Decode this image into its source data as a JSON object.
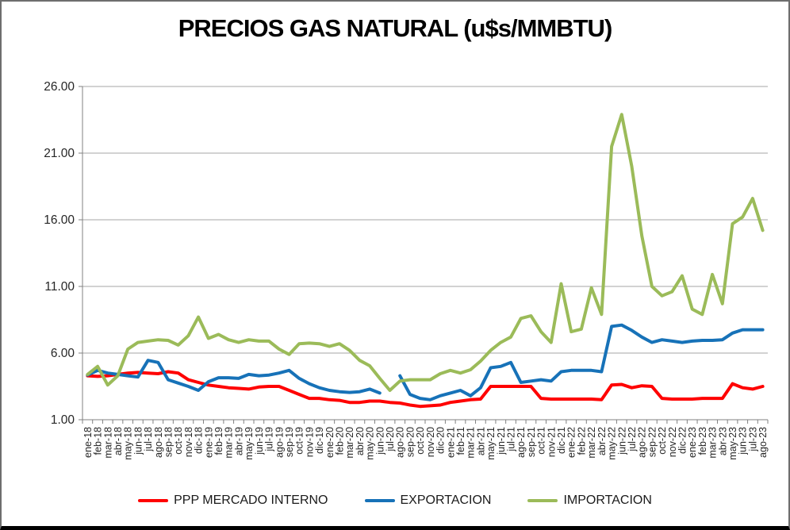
{
  "chart_data": {
    "type": "line",
    "title": "PRECIOS GAS NATURAL (u$s/MMBTU)",
    "xlabel": "",
    "ylabel": "",
    "ylim": [
      1.0,
      26.0
    ],
    "y_ticks": [
      1,
      6,
      11,
      16,
      21,
      26
    ],
    "y_tick_labels": [
      "1.00",
      "6.00",
      "11.00",
      "16.00",
      "21.00",
      "26.00"
    ],
    "grid": true,
    "legend_position": "bottom",
    "categories": [
      "ene-18",
      "feb-18",
      "mar-18",
      "abr-18",
      "may-18",
      "jun-18",
      "jul-18",
      "ago-18",
      "sep-18",
      "oct-18",
      "nov-18",
      "dic-18",
      "ene-19",
      "feb-19",
      "mar-19",
      "abr-19",
      "may-19",
      "jun-19",
      "jul-19",
      "ago-19",
      "sep-19",
      "oct-19",
      "nov-19",
      "dic-19",
      "ene-20",
      "feb-20",
      "mar-20",
      "abr-20",
      "may-20",
      "jun-20",
      "jul-20",
      "ago-20",
      "sep-20",
      "oct-20",
      "nov-20",
      "dic-20",
      "ene-21",
      "feb-21",
      "mar-21",
      "abr-21",
      "may-21",
      "jun-21",
      "jul-21",
      "ago-21",
      "sep-21",
      "oct-21",
      "nov-21",
      "dic-21",
      "ene-22",
      "feb-22",
      "mar-22",
      "abr-22",
      "may-22",
      "jun-22",
      "jul-22",
      "ago-22",
      "sep-22",
      "oct-22",
      "nov-22",
      "dic-22",
      "ene-23",
      "feb-23",
      "mar-23",
      "abr-23",
      "may-23",
      "jun-23",
      "jul-23",
      "ago-23"
    ],
    "series": [
      {
        "name": "PPP MERCADO INTERNO",
        "color": "#FF0000",
        "values": [
          4.3,
          4.25,
          4.3,
          4.4,
          4.5,
          4.55,
          4.5,
          4.45,
          4.6,
          4.5,
          4.0,
          3.8,
          3.6,
          3.5,
          3.4,
          3.35,
          3.3,
          3.45,
          3.5,
          3.5,
          3.2,
          2.9,
          2.6,
          2.6,
          2.5,
          2.45,
          2.3,
          2.3,
          2.4,
          2.4,
          2.3,
          2.25,
          2.1,
          2.0,
          2.05,
          2.1,
          2.3,
          2.4,
          2.5,
          2.55,
          3.5,
          3.5,
          3.5,
          3.5,
          3.5,
          2.6,
          2.55,
          2.55,
          2.55,
          2.55,
          2.55,
          2.5,
          3.6,
          3.65,
          3.4,
          3.55,
          3.5,
          2.6,
          2.55,
          2.55,
          2.55,
          2.6,
          2.6,
          2.6,
          3.7,
          3.4,
          3.3,
          3.5
        ]
      },
      {
        "name": "EXPORTACION",
        "color": "#1772B8",
        "values": [
          4.35,
          4.7,
          4.5,
          4.4,
          4.3,
          4.2,
          5.45,
          5.3,
          4.0,
          3.75,
          3.5,
          3.2,
          3.85,
          4.15,
          4.15,
          4.1,
          4.4,
          4.3,
          4.35,
          4.5,
          4.7,
          4.1,
          3.7,
          3.4,
          3.2,
          3.1,
          3.05,
          3.1,
          3.3,
          3.0,
          null,
          4.3,
          2.9,
          2.6,
          2.5,
          2.8,
          3.0,
          3.2,
          2.8,
          3.4,
          4.9,
          5.0,
          5.3,
          3.8,
          3.9,
          4.0,
          3.9,
          4.6,
          4.7,
          4.7,
          4.7,
          4.6,
          8.0,
          8.1,
          7.7,
          7.2,
          6.8,
          7.0,
          6.9,
          6.8,
          6.9,
          6.95,
          6.95,
          7.0,
          7.5,
          7.75,
          7.75,
          7.75
        ]
      },
      {
        "name": "IMPORTACION",
        "color": "#9BBB59",
        "values": [
          4.4,
          5.0,
          3.6,
          4.3,
          6.3,
          6.8,
          6.9,
          7.0,
          6.95,
          6.6,
          7.3,
          8.7,
          7.1,
          7.4,
          7.0,
          6.8,
          7.0,
          6.9,
          6.9,
          6.3,
          5.9,
          6.7,
          6.75,
          6.7,
          6.5,
          6.7,
          6.2,
          5.45,
          5.05,
          4.1,
          3.2,
          3.9,
          4.0,
          4.0,
          4.0,
          4.45,
          4.7,
          4.5,
          4.75,
          5.4,
          6.2,
          6.8,
          7.2,
          8.6,
          8.8,
          7.6,
          6.8,
          11.2,
          7.6,
          7.8,
          10.9,
          8.9,
          21.5,
          23.9,
          20.0,
          14.8,
          11.0,
          10.3,
          10.6,
          11.8,
          9.3,
          8.9,
          11.9,
          9.7,
          15.7,
          16.2,
          17.6,
          15.2
        ]
      }
    ],
    "colors": {
      "gridline": "#A6A6A6",
      "axis": "#808080",
      "tick_label": "#262626",
      "title": "#000000"
    }
  }
}
